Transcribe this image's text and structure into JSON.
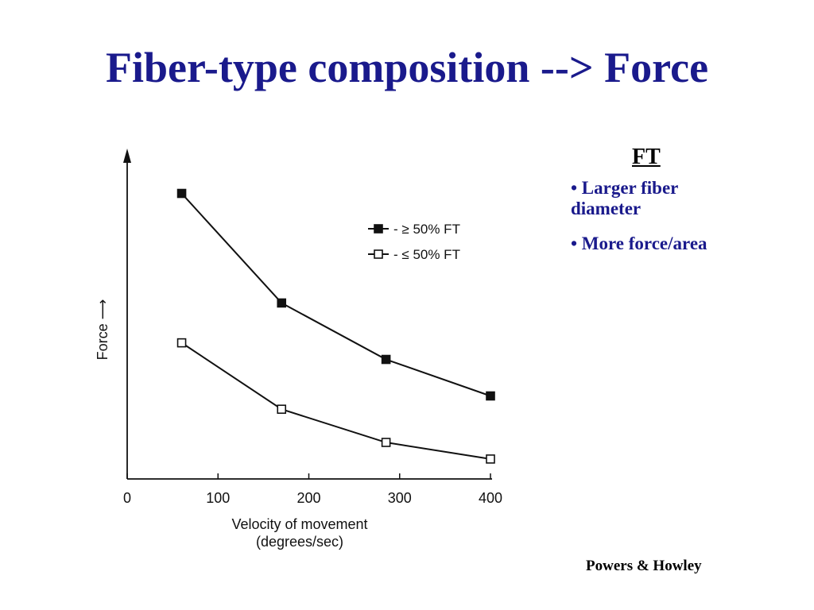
{
  "slide": {
    "title": "Fiber-type composition --> Force"
  },
  "side_panel": {
    "heading": "FT",
    "bullets": [
      "• Larger fiber diameter",
      "• More force/area"
    ]
  },
  "credit": "Powers & Howley",
  "chart_data": {
    "type": "line",
    "ylabel": "Force ⟶",
    "xlabel_lines": [
      "Velocity of movement",
      "(degrees/sec)"
    ],
    "x_ticks": [
      0,
      100,
      200,
      300,
      400
    ],
    "xlim": [
      0,
      400
    ],
    "ylim": [
      0,
      10
    ],
    "y_ticks_labeled": false,
    "grid": false,
    "legend_position": "top-right",
    "series": [
      {
        "name": "- ≥ 50% FT",
        "marker": "filled-square",
        "color": "#111111",
        "x": [
          60,
          170,
          285,
          400
        ],
        "y": [
          8.6,
          5.3,
          3.6,
          2.5
        ]
      },
      {
        "name": "- ≤ 50% FT",
        "marker": "open-square",
        "color": "#111111",
        "x": [
          60,
          170,
          285,
          400
        ],
        "y": [
          4.1,
          2.1,
          1.1,
          0.6
        ]
      }
    ]
  }
}
